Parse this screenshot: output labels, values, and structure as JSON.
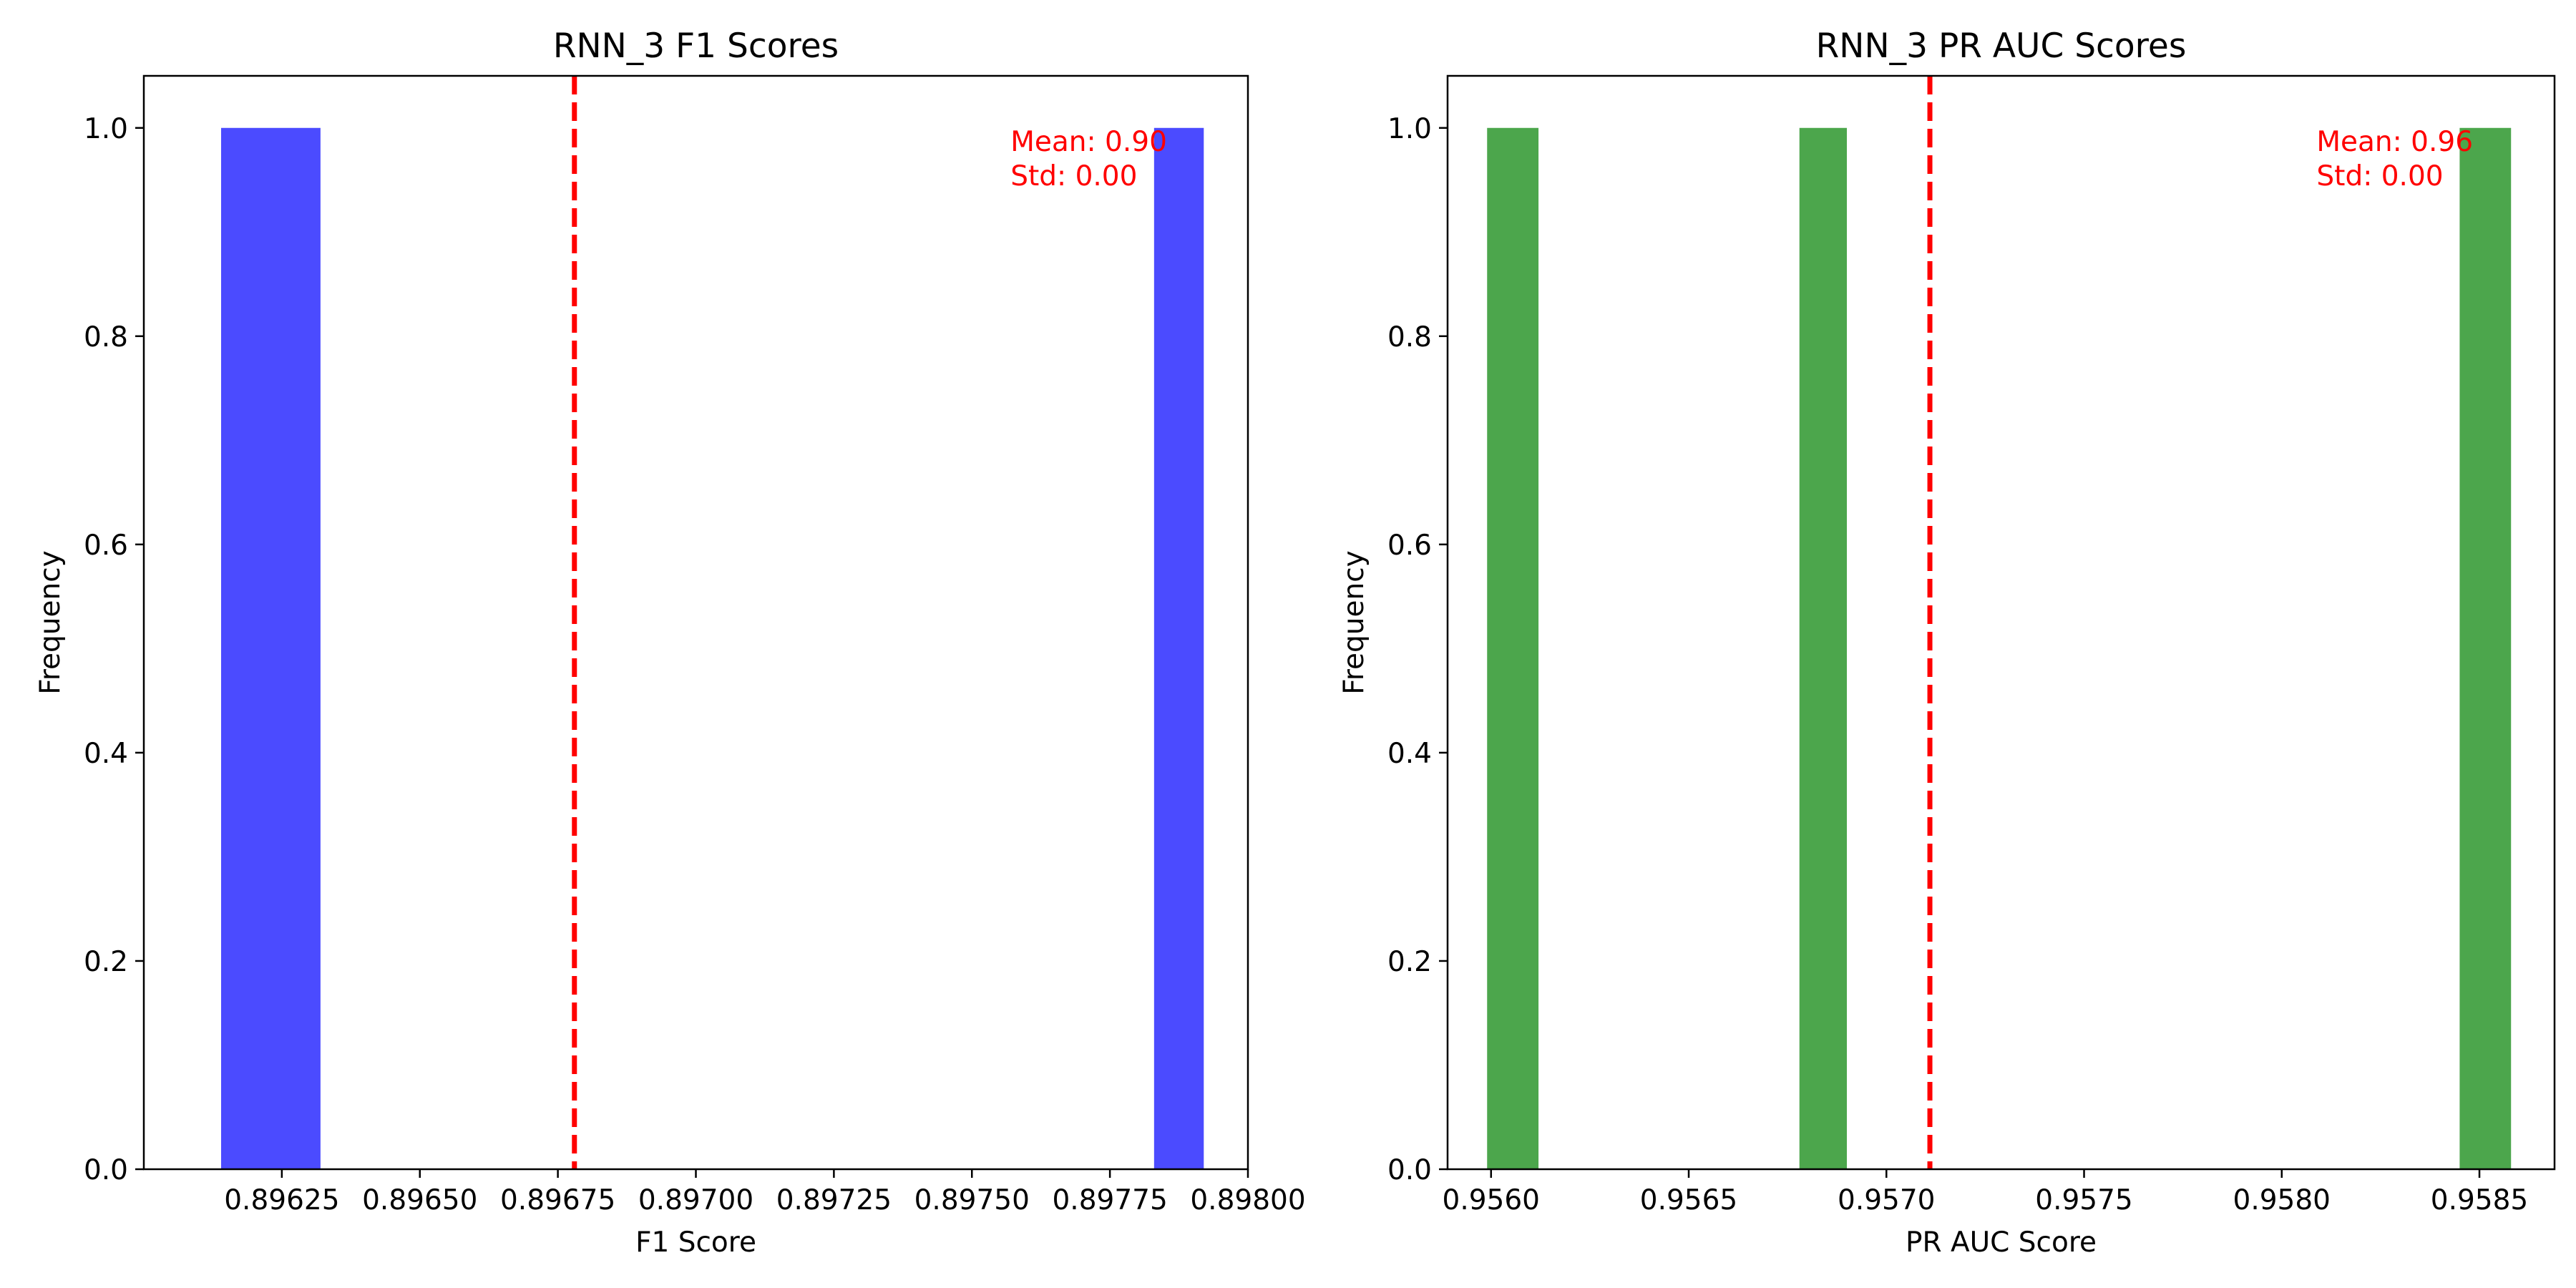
{
  "chart_data": [
    {
      "type": "bar",
      "subtype": "histogram",
      "title": "RNN_3 F1 Scores",
      "xlabel": "F1 Score",
      "ylabel": "Frequency",
      "xlim": [
        0.896,
        0.898
      ],
      "ylim": [
        0,
        1.05
      ],
      "xticks": [
        0.89625,
        0.8965,
        0.89675,
        0.897,
        0.89725,
        0.8975,
        0.89775,
        0.898
      ],
      "xtick_labels": [
        "0.89625",
        "0.89650",
        "0.89675",
        "0.89700",
        "0.89725",
        "0.89750",
        "0.89775",
        "0.89800"
      ],
      "yticks": [
        0.0,
        0.2,
        0.4,
        0.6,
        0.8,
        1.0
      ],
      "ytick_labels": [
        "0.0",
        "0.2",
        "0.4",
        "0.6",
        "0.8",
        "1.0"
      ],
      "bars": [
        {
          "x0": 0.89614,
          "x1": 0.89632,
          "value": 1
        },
        {
          "x0": 0.89783,
          "x1": 0.89792,
          "value": 1
        }
      ],
      "mean_line": 0.89678,
      "annotations": [
        "Mean: 0.90",
        "Std: 0.00"
      ],
      "bar_color": "#4b4bff",
      "line_color": "#ff0000",
      "grid": false,
      "legend": "none"
    },
    {
      "type": "bar",
      "subtype": "histogram",
      "title": "RNN_3 PR AUC Scores",
      "xlabel": "PR AUC Score",
      "ylabel": "Frequency",
      "xlim": [
        0.95589,
        0.95869
      ],
      "ylim": [
        0,
        1.05
      ],
      "xticks": [
        0.956,
        0.9565,
        0.957,
        0.9575,
        0.958,
        0.9585
      ],
      "xtick_labels": [
        "0.9560",
        "0.9565",
        "0.9570",
        "0.9575",
        "0.9580",
        "0.9585"
      ],
      "yticks": [
        0.0,
        0.2,
        0.4,
        0.6,
        0.8,
        1.0
      ],
      "ytick_labels": [
        "0.0",
        "0.2",
        "0.4",
        "0.6",
        "0.8",
        "1.0"
      ],
      "bars": [
        {
          "x0": 0.95599,
          "x1": 0.95612,
          "value": 1
        },
        {
          "x0": 0.95678,
          "x1": 0.9569,
          "value": 1
        },
        {
          "x0": 0.95845,
          "x1": 0.95858,
          "value": 1
        }
      ],
      "mean_line": 0.95711,
      "annotations": [
        "Mean: 0.96",
        "Std: 0.00"
      ],
      "bar_color": "#4ca64c",
      "line_color": "#ff0000",
      "grid": false,
      "legend": "none"
    }
  ]
}
